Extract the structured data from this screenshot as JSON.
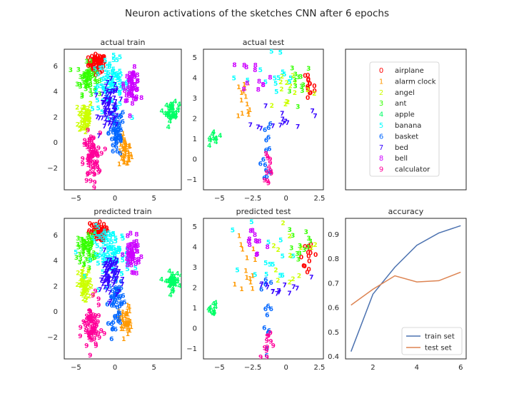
{
  "figure": {
    "title": "Neuron activations of the sketches CNN after 6 epochs"
  },
  "legend_entries": [
    {
      "digit": "0",
      "label": "airplane",
      "color": "#ff0000"
    },
    {
      "digit": "1",
      "label": "alarm clock",
      "color": "#ff9900"
    },
    {
      "digit": "2",
      "label": "angel",
      "color": "#ccff00"
    },
    {
      "digit": "3",
      "label": "ant",
      "color": "#33ff00"
    },
    {
      "digit": "4",
      "label": "apple",
      "color": "#00ff66"
    },
    {
      "digit": "5",
      "label": "banana",
      "color": "#00ffff"
    },
    {
      "digit": "6",
      "label": "basket",
      "color": "#0066ff"
    },
    {
      "digit": "7",
      "label": "bed",
      "color": "#3300ff"
    },
    {
      "digit": "8",
      "label": "bell",
      "color": "#cc00ff"
    },
    {
      "digit": "9",
      "label": "calculator",
      "color": "#ff0099"
    }
  ],
  "chart_data": [
    {
      "type": "scatter",
      "title": "actual train",
      "xlim": [
        -6.5,
        8.5
      ],
      "ylim": [
        -3.7,
        7.3
      ],
      "xticks": [
        -5,
        0,
        5
      ],
      "yticks": [
        -2,
        0,
        2,
        4,
        6
      ],
      "clusters": [
        {
          "class": 0,
          "cx": -2.3,
          "cy": 6.2,
          "sx": 0.55,
          "sy": 0.35,
          "n": 70
        },
        {
          "class": 1,
          "cx": 1.3,
          "cy": -0.8,
          "sx": 0.4,
          "sy": 0.6,
          "n": 45
        },
        {
          "class": 2,
          "cx": -3.8,
          "cy": 2.0,
          "sx": 0.45,
          "sy": 0.7,
          "n": 55
        },
        {
          "class": 3,
          "cx": -3.6,
          "cy": 5.0,
          "sx": 0.6,
          "sy": 0.6,
          "n": 55
        },
        {
          "class": 4,
          "cx": 7.3,
          "cy": 2.4,
          "sx": 0.45,
          "sy": 0.35,
          "n": 40
        },
        {
          "class": 5,
          "cx": -0.5,
          "cy": 4.5,
          "sx": 1.2,
          "sy": 1.0,
          "n": 90
        },
        {
          "class": 6,
          "cx": 0.2,
          "cy": 0.8,
          "sx": 0.5,
          "sy": 1.0,
          "n": 55
        },
        {
          "class": 7,
          "cx": -0.7,
          "cy": 2.8,
          "sx": 0.6,
          "sy": 0.9,
          "n": 70
        },
        {
          "class": 8,
          "cx": 2.2,
          "cy": 4.5,
          "sx": 0.5,
          "sy": 0.6,
          "n": 55
        },
        {
          "class": 9,
          "cx": -3.0,
          "cy": -1.3,
          "sx": 0.55,
          "sy": 1.0,
          "n": 75
        }
      ]
    },
    {
      "type": "scatter",
      "title": "actual test",
      "xlim": [
        -6.2,
        2.8
      ],
      "ylim": [
        -1.5,
        5.4
      ],
      "xticks": [
        -5.0,
        -2.5,
        0.0,
        2.5
      ],
      "yticks": [
        -1,
        0,
        1,
        2,
        3,
        4,
        5
      ],
      "clusters": [
        {
          "class": 0,
          "cx": 1.7,
          "cy": 3.6,
          "sx": 0.25,
          "sy": 0.6,
          "n": 14
        },
        {
          "class": 1,
          "cx": -3.0,
          "cy": 2.8,
          "sx": 0.35,
          "sy": 0.7,
          "n": 14
        },
        {
          "class": 2,
          "cx": 0.2,
          "cy": 3.6,
          "sx": 0.9,
          "sy": 0.6,
          "n": 14
        },
        {
          "class": 3,
          "cx": 1.0,
          "cy": 4.0,
          "sx": 0.6,
          "sy": 0.5,
          "n": 12
        },
        {
          "class": 4,
          "cx": -5.4,
          "cy": 1.0,
          "sx": 0.3,
          "sy": 0.2,
          "n": 10
        },
        {
          "class": 5,
          "cx": -1.0,
          "cy": 3.8,
          "sx": 1.0,
          "sy": 0.8,
          "n": 14
        },
        {
          "class": 6,
          "cx": -1.5,
          "cy": 0.5,
          "sx": 0.2,
          "sy": 1.2,
          "n": 14
        },
        {
          "class": 7,
          "cx": -0.2,
          "cy": 2.1,
          "sx": 1.0,
          "sy": 0.35,
          "n": 14
        },
        {
          "class": 8,
          "cx": -2.3,
          "cy": 4.2,
          "sx": 0.6,
          "sy": 0.4,
          "n": 12
        },
        {
          "class": 9,
          "cx": -1.4,
          "cy": -0.5,
          "sx": 0.2,
          "sy": 0.6,
          "n": 12
        }
      ]
    },
    {
      "type": "scatter",
      "title": "predicted train",
      "xlim": [
        -6.5,
        8.5
      ],
      "ylim": [
        -3.7,
        7.3
      ],
      "xticks": [
        -5,
        0,
        5
      ],
      "yticks": [
        -2,
        0,
        2,
        4,
        6
      ],
      "clusters": [
        {
          "class": 0,
          "cx": -2.3,
          "cy": 6.2,
          "sx": 0.55,
          "sy": 0.35,
          "n": 70
        },
        {
          "class": 1,
          "cx": 1.3,
          "cy": -0.8,
          "sx": 0.4,
          "sy": 0.6,
          "n": 45
        },
        {
          "class": 2,
          "cx": -3.8,
          "cy": 2.0,
          "sx": 0.45,
          "sy": 0.7,
          "n": 55
        },
        {
          "class": 3,
          "cx": -3.6,
          "cy": 5.0,
          "sx": 0.6,
          "sy": 0.6,
          "n": 55
        },
        {
          "class": 4,
          "cx": 7.3,
          "cy": 2.4,
          "sx": 0.45,
          "sy": 0.35,
          "n": 40
        },
        {
          "class": 5,
          "cx": -0.5,
          "cy": 4.5,
          "sx": 1.2,
          "sy": 1.0,
          "n": 90
        },
        {
          "class": 6,
          "cx": 0.2,
          "cy": 0.8,
          "sx": 0.5,
          "sy": 1.0,
          "n": 55
        },
        {
          "class": 7,
          "cx": -0.7,
          "cy": 2.8,
          "sx": 0.6,
          "sy": 0.9,
          "n": 70
        },
        {
          "class": 8,
          "cx": 2.2,
          "cy": 4.5,
          "sx": 0.5,
          "sy": 0.6,
          "n": 55
        },
        {
          "class": 9,
          "cx": -3.0,
          "cy": -1.3,
          "sx": 0.55,
          "sy": 1.0,
          "n": 75
        }
      ]
    },
    {
      "type": "scatter",
      "title": "predicted test",
      "xlim": [
        -6.2,
        2.8
      ],
      "ylim": [
        -1.5,
        5.4
      ],
      "xticks": [
        -5.0,
        -2.5,
        0.0,
        2.5
      ],
      "yticks": [
        -1,
        0,
        1,
        2,
        3,
        4,
        5
      ],
      "clusters": [
        {
          "class": 0,
          "cx": 1.7,
          "cy": 3.6,
          "sx": 0.25,
          "sy": 0.6,
          "n": 14
        },
        {
          "class": 1,
          "cx": -3.0,
          "cy": 2.8,
          "sx": 0.35,
          "sy": 0.7,
          "n": 14
        },
        {
          "class": 2,
          "cx": 0.2,
          "cy": 3.6,
          "sx": 0.9,
          "sy": 0.6,
          "n": 14
        },
        {
          "class": 3,
          "cx": 1.0,
          "cy": 4.0,
          "sx": 0.6,
          "sy": 0.5,
          "n": 12
        },
        {
          "class": 4,
          "cx": -5.4,
          "cy": 1.0,
          "sx": 0.3,
          "sy": 0.2,
          "n": 10
        },
        {
          "class": 5,
          "cx": -1.0,
          "cy": 3.8,
          "sx": 1.0,
          "sy": 0.8,
          "n": 14
        },
        {
          "class": 6,
          "cx": -1.5,
          "cy": 0.5,
          "sx": 0.2,
          "sy": 1.2,
          "n": 14
        },
        {
          "class": 7,
          "cx": -0.2,
          "cy": 2.1,
          "sx": 1.0,
          "sy": 0.35,
          "n": 14
        },
        {
          "class": 8,
          "cx": -2.3,
          "cy": 4.2,
          "sx": 0.6,
          "sy": 0.4,
          "n": 12
        },
        {
          "class": 9,
          "cx": -1.4,
          "cy": -0.5,
          "sx": 0.2,
          "sy": 0.6,
          "n": 12
        }
      ]
    },
    {
      "type": "line",
      "title": "accuracy",
      "x": [
        1,
        2,
        3,
        4,
        5,
        6
      ],
      "xlim": [
        0.75,
        6.25
      ],
      "ylim": [
        0.39,
        0.965
      ],
      "xticks": [
        2,
        4,
        6
      ],
      "yticks": [
        0.4,
        0.5,
        0.6,
        0.7,
        0.8,
        0.9
      ],
      "legend_position": "lower right",
      "series": [
        {
          "name": "train set",
          "color": "#4c72b0",
          "values": [
            0.42,
            0.655,
            0.765,
            0.855,
            0.905,
            0.935
          ]
        },
        {
          "name": "test set",
          "color": "#dd8452",
          "values": [
            0.61,
            0.675,
            0.73,
            0.705,
            0.71,
            0.745
          ]
        }
      ]
    }
  ]
}
